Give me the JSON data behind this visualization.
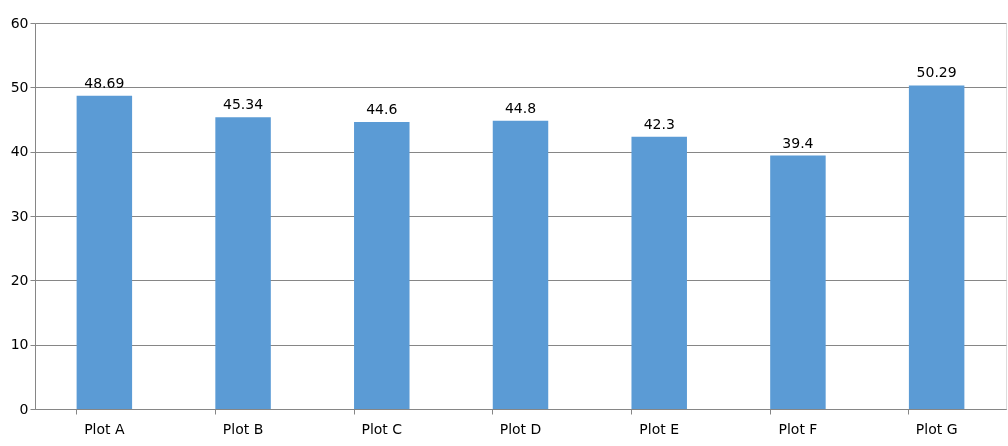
{
  "chart_data": {
    "type": "bar",
    "categories": [
      "Plot A",
      "Plot B",
      "Plot C",
      "Plot D",
      "Plot E",
      "Plot F",
      "Plot G"
    ],
    "values": [
      48.69,
      45.34,
      44.6,
      44.8,
      42.3,
      39.4,
      50.29
    ],
    "color": "#5b9bd5",
    "ylim": [
      0,
      60
    ],
    "yticks": [
      0,
      10,
      20,
      30,
      40,
      50,
      60
    ],
    "grid": "y",
    "data_labels": true
  }
}
